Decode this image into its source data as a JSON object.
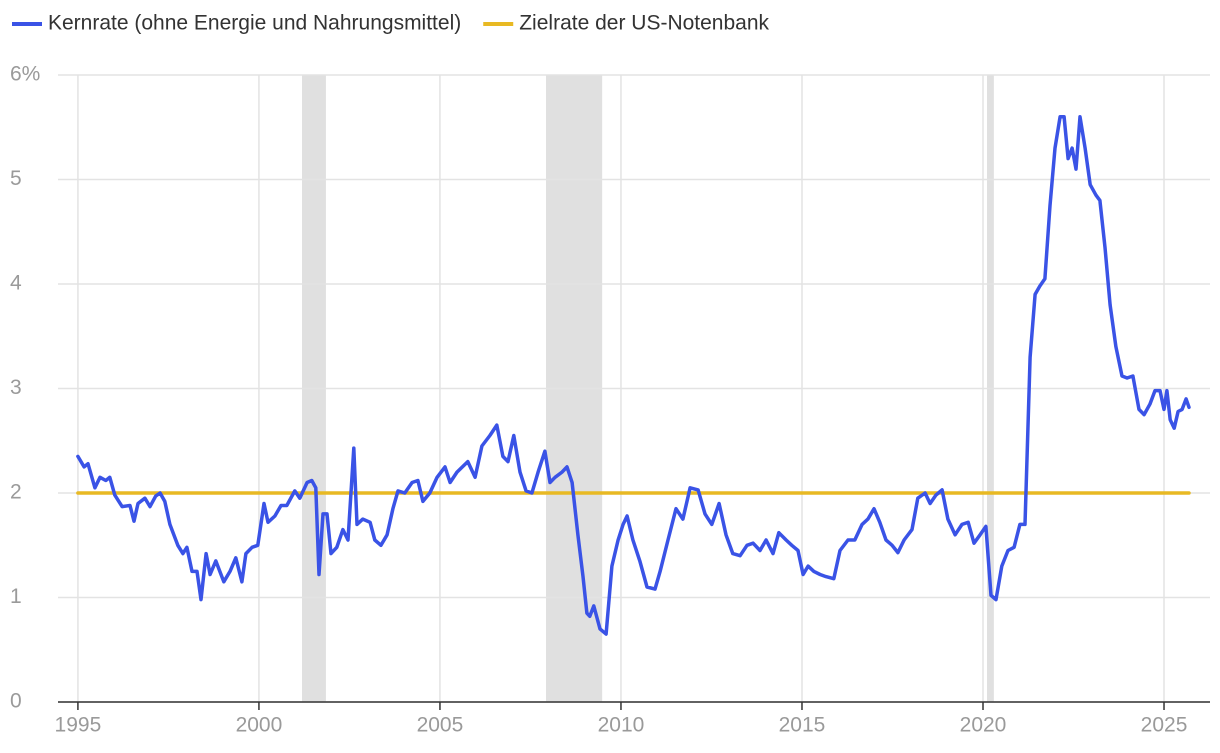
{
  "chart_data": {
    "type": "line",
    "series": [
      {
        "name": "Kernrate (ohne Energie und Nahrungsmittel)",
        "color": "#3a53e6",
        "x": [
          1995.0,
          1995.17,
          1995.28,
          1995.47,
          1995.61,
          1995.77,
          1995.88,
          1996.02,
          1996.22,
          1996.44,
          1996.55,
          1996.66,
          1996.85,
          1996.99,
          1997.15,
          1997.27,
          1997.4,
          1997.54,
          1997.76,
          1997.9,
          1998.01,
          1998.15,
          1998.29,
          1998.4,
          1998.54,
          1998.65,
          1998.81,
          1999.03,
          1999.2,
          1999.36,
          1999.53,
          1999.64,
          1999.81,
          1999.97,
          2000.14,
          2000.25,
          2000.44,
          2000.61,
          2000.77,
          2000.99,
          2001.13,
          2001.33,
          2001.46,
          2001.57,
          2001.66,
          2001.77,
          2001.88,
          2001.99,
          2002.15,
          2002.32,
          2002.46,
          2002.62,
          2002.71,
          2002.87,
          2003.07,
          2003.2,
          2003.37,
          2003.54,
          2003.7,
          2003.84,
          2004.03,
          2004.23,
          2004.39,
          2004.53,
          2004.72,
          2004.92,
          2005.14,
          2005.28,
          2005.47,
          2005.77,
          2005.97,
          2006.16,
          2006.38,
          2006.57,
          2006.74,
          2006.88,
          2007.04,
          2007.21,
          2007.38,
          2007.54,
          2007.71,
          2007.9,
          2008.04,
          2008.18,
          2008.37,
          2008.51,
          2008.65,
          2008.81,
          2008.95,
          2009.06,
          2009.14,
          2009.25,
          2009.42,
          2009.59,
          2009.75,
          2009.92,
          2010.06,
          2010.17,
          2010.33,
          2010.52,
          2010.72,
          2010.94,
          2011.08,
          2011.3,
          2011.52,
          2011.71,
          2011.91,
          2012.13,
          2012.32,
          2012.51,
          2012.71,
          2012.9,
          2013.09,
          2013.29,
          2013.48,
          2013.65,
          2013.84,
          2014.01,
          2014.2,
          2014.36,
          2014.56,
          2014.72,
          2014.89,
          2015.03,
          2015.17,
          2015.33,
          2015.5,
          2015.66,
          2015.88,
          2016.05,
          2016.27,
          2016.46,
          2016.66,
          2016.82,
          2016.99,
          2017.15,
          2017.32,
          2017.49,
          2017.65,
          2017.82,
          2018.04,
          2018.2,
          2018.4,
          2018.54,
          2018.7,
          2018.87,
          2019.03,
          2019.23,
          2019.42,
          2019.59,
          2019.75,
          2019.92,
          2020.08,
          2020.22,
          2020.36,
          2020.52,
          2020.69,
          2020.86,
          2021.02,
          2021.16,
          2021.3,
          2021.44,
          2021.57,
          2021.71,
          2021.85,
          2021.99,
          2022.13,
          2022.24,
          2022.35,
          2022.46,
          2022.57,
          2022.68,
          2022.82,
          2022.96,
          2023.12,
          2023.23,
          2023.37,
          2023.51,
          2023.67,
          2023.84,
          2023.98,
          2024.14,
          2024.31,
          2024.45,
          2024.61,
          2024.75,
          2024.89,
          2025.0,
          2025.08,
          2025.17,
          2025.28,
          2025.39,
          2025.5,
          2025.61,
          2025.69
        ],
        "values": [
          2.35,
          2.25,
          2.28,
          2.05,
          2.15,
          2.12,
          2.15,
          1.98,
          1.87,
          1.88,
          1.73,
          1.9,
          1.95,
          1.87,
          1.97,
          2.0,
          1.92,
          1.7,
          1.5,
          1.42,
          1.48,
          1.25,
          1.25,
          0.98,
          1.42,
          1.22,
          1.35,
          1.15,
          1.25,
          1.38,
          1.15,
          1.42,
          1.48,
          1.5,
          1.9,
          1.72,
          1.78,
          1.88,
          1.88,
          2.02,
          1.95,
          2.1,
          2.12,
          2.05,
          1.22,
          1.8,
          1.8,
          1.42,
          1.48,
          1.65,
          1.55,
          2.43,
          1.7,
          1.75,
          1.72,
          1.55,
          1.5,
          1.6,
          1.85,
          2.02,
          2.0,
          2.1,
          2.12,
          1.92,
          2.0,
          2.15,
          2.25,
          2.1,
          2.2,
          2.3,
          2.15,
          2.45,
          2.55,
          2.65,
          2.35,
          2.3,
          2.55,
          2.2,
          2.02,
          2.0,
          2.2,
          2.4,
          2.1,
          2.15,
          2.2,
          2.25,
          2.1,
          1.6,
          1.2,
          0.85,
          0.82,
          0.92,
          0.7,
          0.65,
          1.3,
          1.55,
          1.7,
          1.78,
          1.55,
          1.35,
          1.1,
          1.08,
          1.25,
          1.55,
          1.85,
          1.75,
          2.05,
          2.03,
          1.8,
          1.7,
          1.9,
          1.6,
          1.42,
          1.4,
          1.5,
          1.52,
          1.45,
          1.55,
          1.42,
          1.62,
          1.55,
          1.5,
          1.45,
          1.22,
          1.3,
          1.25,
          1.22,
          1.2,
          1.18,
          1.45,
          1.55,
          1.55,
          1.7,
          1.75,
          1.85,
          1.72,
          1.55,
          1.5,
          1.43,
          1.55,
          1.65,
          1.95,
          2.0,
          1.9,
          1.98,
          2.03,
          1.75,
          1.6,
          1.7,
          1.72,
          1.52,
          1.6,
          1.68,
          1.02,
          0.98,
          1.3,
          1.45,
          1.48,
          1.7,
          1.7,
          3.3,
          3.9,
          3.98,
          4.05,
          4.75,
          5.3,
          5.6,
          5.6,
          5.2,
          5.3,
          5.1,
          5.6,
          5.3,
          4.95,
          4.85,
          4.8,
          4.35,
          3.8,
          3.4,
          3.12,
          3.1,
          3.12,
          2.8,
          2.75,
          2.85,
          2.98,
          2.98,
          2.8,
          2.98,
          2.7,
          2.62,
          2.78,
          2.8,
          2.9,
          2.82
        ]
      },
      {
        "name": "Zielrate der US-Notenbank",
        "color": "#e8b923",
        "x": [
          1995.0,
          2025.69
        ],
        "values": [
          2,
          2
        ]
      }
    ],
    "recessions": [
      [
        2001.19,
        2001.85
      ],
      [
        2007.93,
        2009.48
      ],
      [
        2020.11,
        2020.3
      ]
    ],
    "recession_color": "#e0e0e0",
    "xlim": [
      1994.45,
      2026.27
    ],
    "xticks": [
      1995,
      2000,
      2005,
      2010,
      2015,
      2020,
      2025
    ],
    "ylim": [
      0,
      6
    ],
    "yticks": [
      0,
      1,
      2,
      3,
      4,
      5,
      {
        "value": 6,
        "label": "6%"
      }
    ],
    "grid": true,
    "legend": "top-left"
  }
}
